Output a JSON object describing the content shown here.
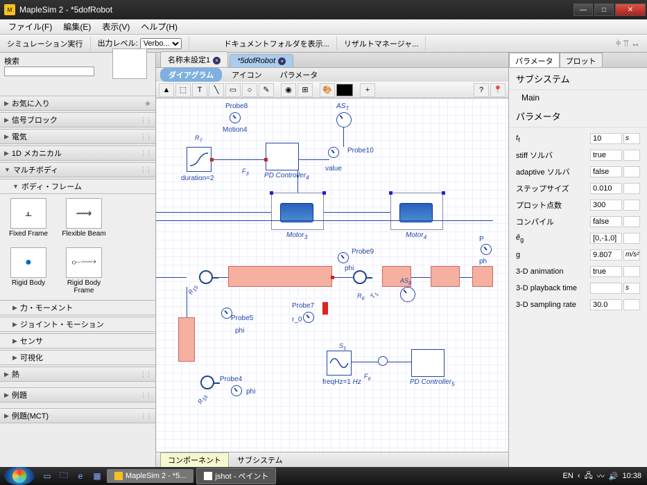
{
  "window": {
    "title": "MapleSim 2 -  *5dofRobot"
  },
  "menu": {
    "file": "ファイル(F)",
    "edit": "編集(E)",
    "view": "表示(V)",
    "help": "ヘルプ(H)"
  },
  "toolbar": {
    "sim_run": "シミュレーション実行",
    "out_level": "出力レベル:",
    "out_level_val": "Verbo...",
    "doc_folder": "ドキュメントフォルダを表示...",
    "result_mgr": "リザルトマネージャ..."
  },
  "left": {
    "search_label": "検索",
    "search_value": "",
    "items": {
      "fav": "お気に入り",
      "signal": "信号ブロック",
      "elec": "電気",
      "mech1d": "1D メカニカル",
      "multibody": "マルチボディ",
      "bodyframe": "ボディ・フレーム",
      "force": "力・モーメント",
      "joint": "ジョイント・モーション",
      "sensor": "センサ",
      "vis": "可視化",
      "heat": "熱",
      "ex1": "例題",
      "ex2": "例題(MCT)"
    },
    "cells": {
      "ff": "Fixed Frame",
      "fb": "Flexible Beam",
      "rb": "Rigid Body",
      "rbf": "Rigid Body Frame"
    }
  },
  "tabs": {
    "t1": "名称未設定1",
    "t2": "*5dofRobot"
  },
  "subtabs": {
    "diagram": "ダイアグラム",
    "icon": "アイコン",
    "param": "パラメータ"
  },
  "canvas": {
    "probe8": "Probe8",
    "motion4": "Motion4",
    "as7": "AS",
    "probe10": "Probe10",
    "value": "value",
    "duration": "duration=2",
    "pd4": "PD Controller",
    "motor3": "Motor",
    "motor4": "Motor",
    "probe9": "Probe9",
    "phi1": "phi",
    "probe7": "Probe7",
    "r0": "r_0",
    "probe5": "Probe5",
    "phi2": "phi",
    "probe4": "Probe4",
    "phi3": "phi",
    "freq": "freqHz=1",
    "hz": "Hz",
    "pd5": "PD Controller",
    "s1": "S",
    "f3": "F",
    "f6": "F",
    "r6": "R",
    "r7": "R",
    "r15": "R",
    "r16": "R",
    "t1": "T",
    "as8": "AS",
    "p": "P",
    "ph": "ph"
  },
  "btmtabs": {
    "comp": "コンポーネント",
    "sub": "サブシステム"
  },
  "right": {
    "tab_param": "パラメータ",
    "tab_plot": "プロット",
    "h1": "サブシステム",
    "main": "Main",
    "h2": "パラメータ",
    "rows": [
      {
        "n": "t_f",
        "v": "10",
        "u": "s"
      },
      {
        "n": "stiff ソルバ",
        "v": "true",
        "u": ""
      },
      {
        "n": "adaptive ソルバ",
        "v": "false",
        "u": ""
      },
      {
        "n": "ステップサイズ",
        "v": "0.010",
        "u": ""
      },
      {
        "n": "プロット点数",
        "v": "300",
        "u": ""
      },
      {
        "n": "コンパイル",
        "v": "false",
        "u": ""
      },
      {
        "n": "ê_g",
        "v": "[0,-1,0]",
        "u": ""
      },
      {
        "n": "g",
        "v": "9.807",
        "u": "m/s²"
      },
      {
        "n": "3-D animation",
        "v": "true",
        "u": ""
      },
      {
        "n": "3-D playback time",
        "v": "",
        "u": "s"
      },
      {
        "n": "3-D sampling rate",
        "v": "30.0",
        "u": ""
      }
    ]
  },
  "taskbar": {
    "app1": "MapleSim 2 -  *5...",
    "app2": "jshot - ペイント",
    "lang": "EN",
    "time": "10:38"
  },
  "colors": {
    "accent": "#2a5fbd",
    "salmon": "#f5b0a0",
    "grid": "#dce",
    "canvas_bg": "#ffffff"
  }
}
